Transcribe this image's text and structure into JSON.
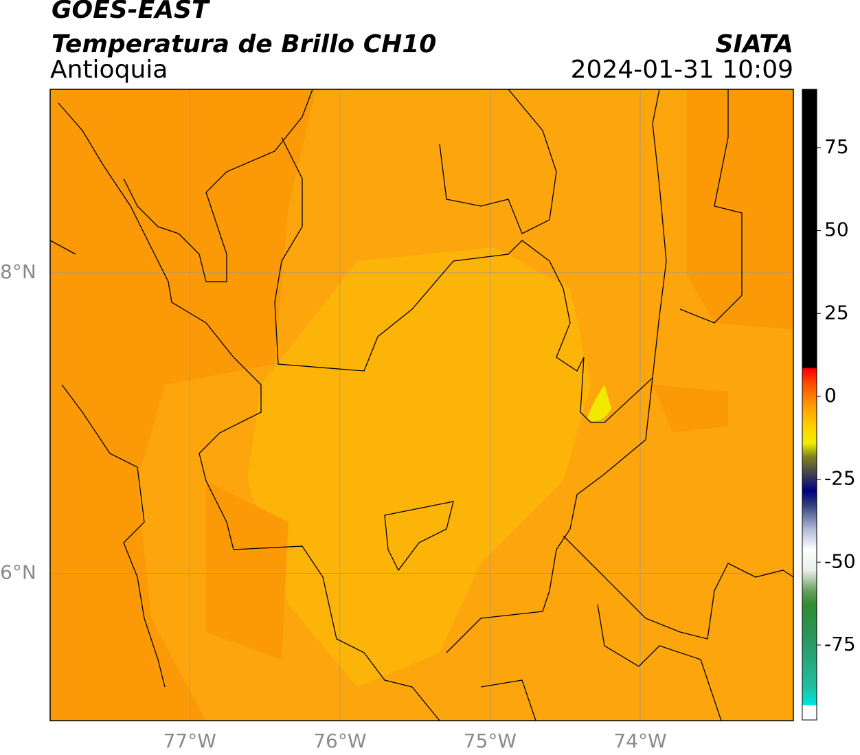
{
  "header": {
    "title": "GOES-EAST",
    "subtitle": "Temperatura de Brillo CH10",
    "region": "Antioquia",
    "source": "SIATA",
    "datetime": "2024-01-31 10:09"
  },
  "map": {
    "xlim": [
      -77.93,
      -72.98
    ],
    "ylim": [
      5.02,
      9.22
    ],
    "xticks": [
      {
        "value": -77,
        "label": "77°W"
      },
      {
        "value": -76,
        "label": "76°W"
      },
      {
        "value": -75,
        "label": "75°W"
      },
      {
        "value": -74,
        "label": "74°W"
      }
    ],
    "yticks": [
      {
        "value": 6,
        "label": "6°N"
      },
      {
        "value": 8,
        "label": "8°N"
      }
    ],
    "grid": true
  },
  "colorbar": {
    "lim": [
      -97.6,
      92.6
    ],
    "ticks": [
      -75,
      -50,
      -25,
      0,
      25,
      50,
      75
    ]
  }
}
